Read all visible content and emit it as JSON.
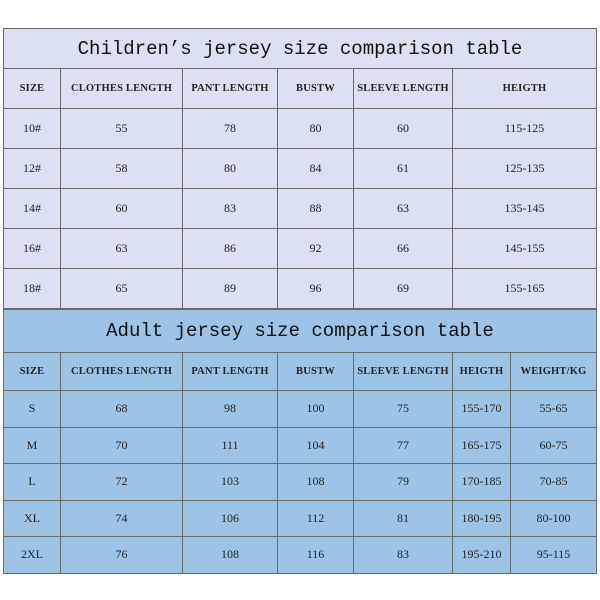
{
  "children": {
    "title": "Children’s jersey size comparison table",
    "headers": [
      "SIZE",
      "CLOTHES LENGTH",
      "PANT LENGTH",
      "BUSTW",
      "SLEEVE LENGTH",
      "HEIGTH"
    ],
    "rows": [
      [
        "10#",
        "55",
        "78",
        "80",
        "60",
        "115-125"
      ],
      [
        "12#",
        "58",
        "80",
        "84",
        "61",
        "125-135"
      ],
      [
        "14#",
        "60",
        "83",
        "88",
        "63",
        "135-145"
      ],
      [
        "16#",
        "63",
        "86",
        "92",
        "66",
        "145-155"
      ],
      [
        "18#",
        "65",
        "89",
        "96",
        "69",
        "155-165"
      ]
    ],
    "background": "#dbe1f3"
  },
  "adult": {
    "title": "Adult jersey size comparison table",
    "headers": [
      "SIZE",
      "CLOTHES LENGTH",
      "PANT LENGTH",
      "BUSTW",
      "SLEEVE LENGTH",
      "HEIGTH",
      "WEIGHT/KG"
    ],
    "rows": [
      [
        "S",
        "68",
        "98",
        "100",
        "75",
        "155-170",
        "55-65"
      ],
      [
        "M",
        "70",
        "111",
        "104",
        "77",
        "165-175",
        "60-75"
      ],
      [
        "L",
        "72",
        "103",
        "108",
        "79",
        "170-185",
        "70-85"
      ],
      [
        "XL",
        "74",
        "106",
        "112",
        "81",
        "180-195",
        "80-100"
      ],
      [
        "2XL",
        "76",
        "108",
        "116",
        "83",
        "195-210",
        "95-115"
      ]
    ],
    "background": "#9dc3e6"
  }
}
